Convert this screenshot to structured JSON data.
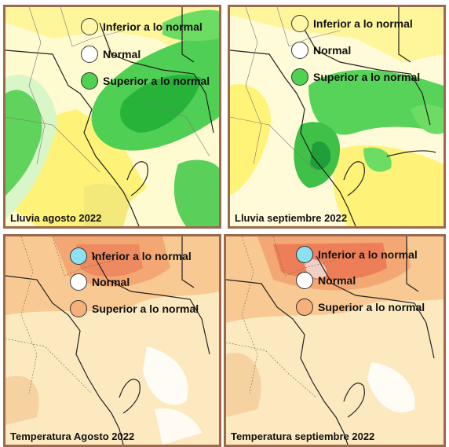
{
  "panels": [
    {
      "caption": "Lluvia agosto 2022",
      "legend": [
        {
          "label": "Inferior a lo normal",
          "color": "#fff7a8"
        },
        {
          "label": "Normal",
          "color": "#ffffff"
        },
        {
          "label": "Superior a lo normal",
          "color": "#4fd152"
        }
      ]
    },
    {
      "caption": "Lluvia septiembre 2022",
      "legend": [
        {
          "label": "Inferior a lo normal",
          "color": "#fff7a8"
        },
        {
          "label": "Normal",
          "color": "#ffffff"
        },
        {
          "label": "Superior a lo normal",
          "color": "#4fd152"
        }
      ]
    },
    {
      "caption": "Temperatura Agosto 2022",
      "legend": [
        {
          "label": "Inferior a lo normal",
          "color": "#8ee1f0"
        },
        {
          "label": "Normal",
          "color": "#ffffff"
        },
        {
          "label": "Superior a lo normal",
          "color": "#f6b07a"
        }
      ]
    },
    {
      "caption": "Temperatura septiembre 2022",
      "legend": [
        {
          "label": "Inferior a lo normal",
          "color": "#8ee1f0"
        },
        {
          "label": "Normal",
          "color": "#ffffff"
        },
        {
          "label": "Superior a lo normal",
          "color": "#f6b07a"
        }
      ]
    }
  ]
}
